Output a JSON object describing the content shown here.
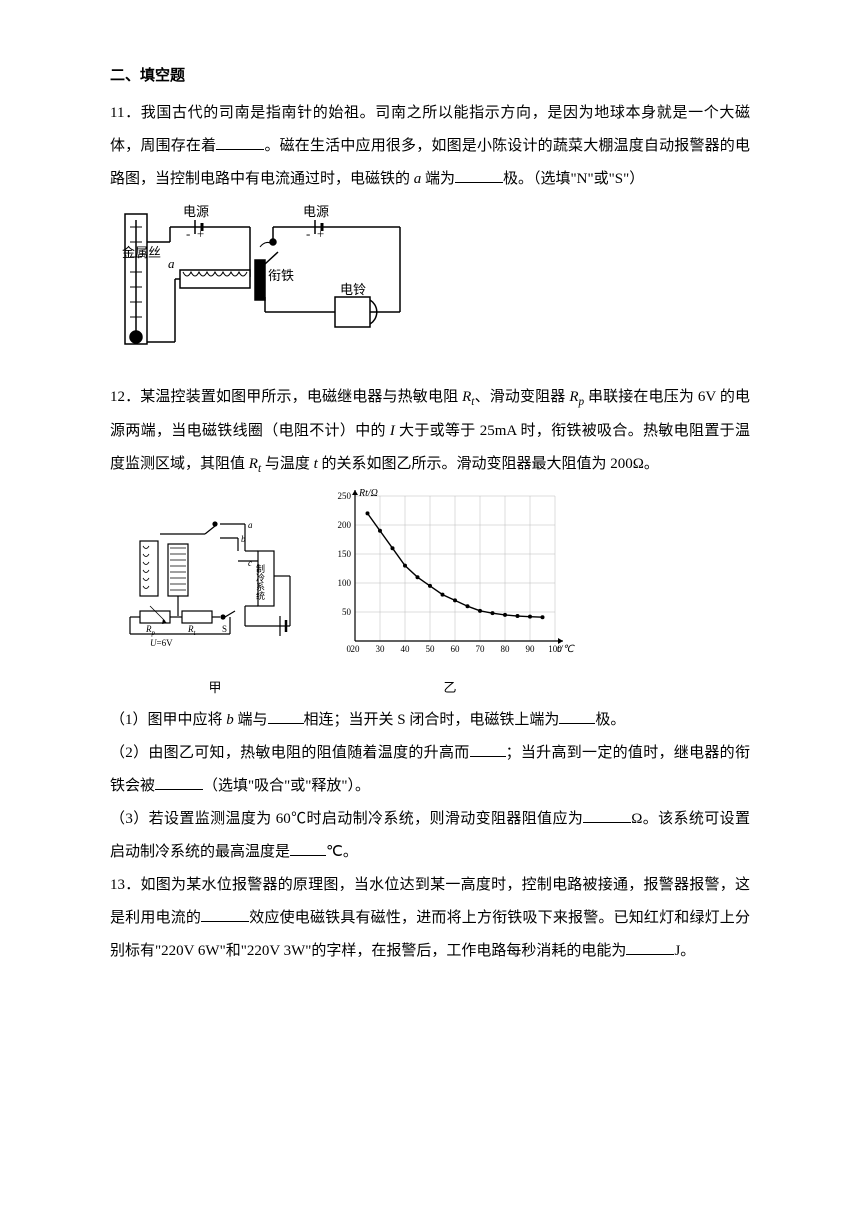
{
  "section": {
    "title": "二、填空题"
  },
  "q11": {
    "num": "11．",
    "t1": "我国古代的司南是指南针的始祖。司南之所以能指示方向，是因为地球本身就是一个大磁体，周围存在着",
    "t2": "。磁在生活中应用很多，如图是小陈设计的蔬菜大棚温度自动报警器的电路图，当控制电路中有电流通过时，电磁铁的 ",
    "a": "a",
    "t3": " 端为",
    "t4": "极。（选填\"N\"或\"S\"）",
    "fig": {
      "labels": {
        "psL": "电源",
        "psR": "电源",
        "wire": "金属丝",
        "a": "a",
        "arm": "衔铁",
        "bell": "电铃"
      }
    }
  },
  "q12": {
    "num": "12．",
    "t1": "某温控装置如图甲所示，电磁继电器与热敏电阻 ",
    "Rt": "R",
    "Rt_sub": "t",
    "t2": "、滑动变阻器 ",
    "Rp": "R",
    "Rp_sub": "p",
    "t3": " 串联接在电压为 6V 的电源两端，当电磁铁线圈（电阻不计）中的 ",
    "I": "I",
    "t4": " 大于或等于 25mA 时，衔铁被吸合。热敏电阻置于温度监测区域，其阻值 ",
    "t5": " 与温度 ",
    "tvar": "t",
    "t6": " 的关系如图乙所示。滑动变阻器最大阻值为 200Ω。",
    "p1a": "（1）图甲中应将 ",
    "b": "b",
    "p1b": " 端与",
    "p1c": "相连；当开关 S 闭合时，电磁铁上端为",
    "p1d": "极。",
    "p2a": "（2）由图乙可知，热敏电阻的阻值随着温度的升高而",
    "p2b": "；当升高到一定的值时，继电器的衔铁会被",
    "p2c": "（选填\"吸合\"或\"释放\"）。",
    "p3a": "（3）若设置监测温度为 60℃时启动制冷系统，则滑动变阻器阻值应为",
    "p3b": "Ω。该系统可设置启动制冷系统的最高温度是",
    "p3c": "℃。",
    "fig": {
      "left": {
        "Rp": "R",
        "Rp_sub": "p",
        "Rt": "R",
        "Rt_sub": "t",
        "U": "U",
        "U_eq": "=6V",
        "S": "S",
        "a": "a",
        "b": "b",
        "c": "c",
        "cool": "制冷系统",
        "cap": "甲"
      },
      "chart": {
        "type": "line",
        "ylabel": "Rt/Ω",
        "xlabel": "t/℃",
        "xlim": [
          20,
          100
        ],
        "ylim": [
          0,
          250
        ],
        "xticks": [
          20,
          30,
          40,
          50,
          60,
          70,
          80,
          90,
          100
        ],
        "yticks": [
          0,
          50,
          100,
          150,
          200,
          250
        ],
        "points": [
          [
            25,
            220
          ],
          [
            30,
            190
          ],
          [
            35,
            160
          ],
          [
            40,
            130
          ],
          [
            45,
            110
          ],
          [
            50,
            95
          ],
          [
            55,
            80
          ],
          [
            60,
            70
          ],
          [
            65,
            60
          ],
          [
            70,
            52
          ],
          [
            75,
            48
          ],
          [
            80,
            45
          ],
          [
            85,
            43
          ],
          [
            90,
            42
          ],
          [
            95,
            41
          ]
        ],
        "line_color": "#000",
        "marker_color": "#000",
        "grid_color": "#bbb",
        "background_color": "#fff",
        "cap": "乙"
      }
    }
  },
  "q13": {
    "num": "13．",
    "t1": "如图为某水位报警器的原理图，当水位达到某一高度时，控制电路被接通，报警器报警，这是利用电流的",
    "t2": "效应使电磁铁具有磁性，进而将上方衔铁吸下来报警。已知红灯和绿灯上分别标有\"220V 6W\"和\"220V 3W\"的字样，在报警后，工作电路每秒消耗的电能为",
    "t3": "J。"
  }
}
